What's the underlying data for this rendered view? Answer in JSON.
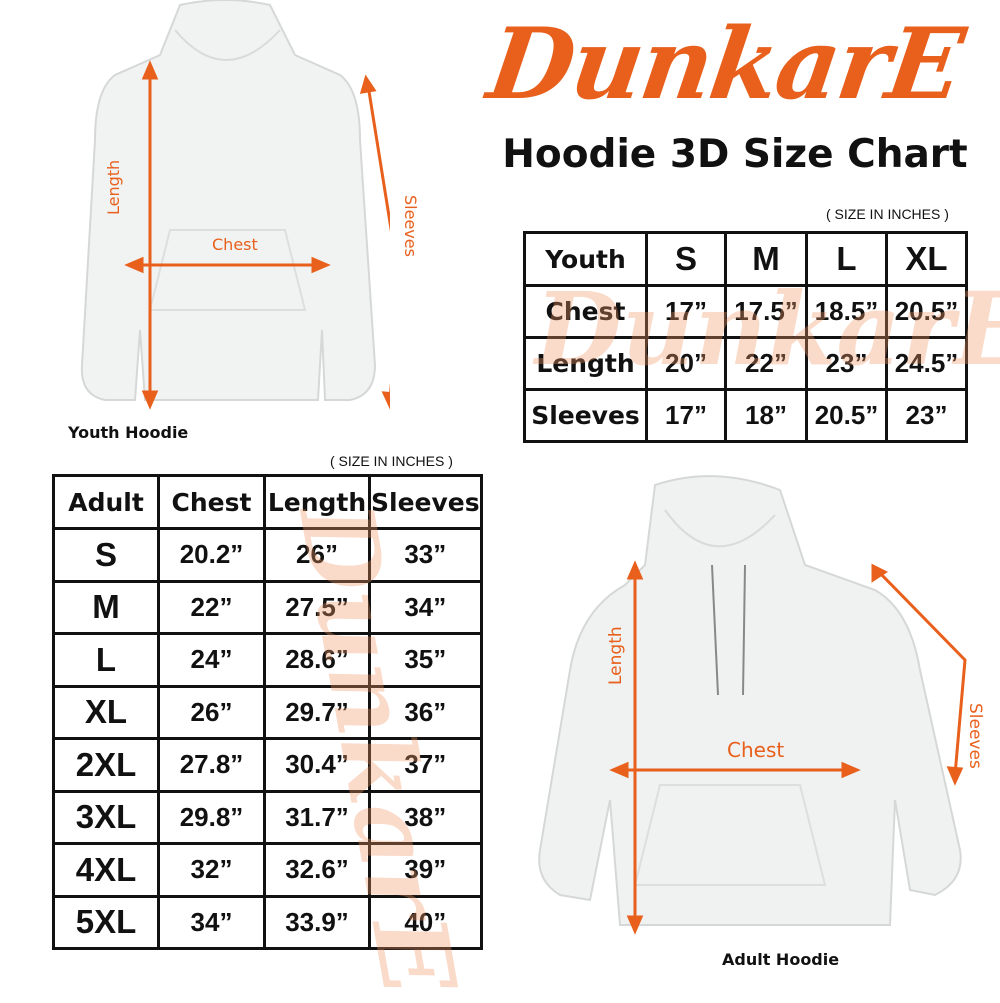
{
  "brand": {
    "logo_text": "DunkarE",
    "color": "#e8601c"
  },
  "title": "Hoodie 3D Size Chart",
  "youth": {
    "unit_note": "( SIZE IN INCHES )",
    "caption": "Youth Hoodie",
    "labels": {
      "length": "Length",
      "chest": "Chest",
      "sleeves": "Sleeves"
    },
    "header": [
      "Youth",
      "S",
      "M",
      "L",
      "XL"
    ],
    "rows": [
      [
        "Chest",
        "17”",
        "17.5”",
        "18.5”",
        "20.5”"
      ],
      [
        "Length",
        "20”",
        "22”",
        "23”",
        "24.5”"
      ],
      [
        "Sleeves",
        "17”",
        "18”",
        "20.5”",
        "23”"
      ]
    ]
  },
  "adult": {
    "unit_note": "( SIZE IN INCHES )",
    "caption": "Adult Hoodie",
    "labels": {
      "length": "Length",
      "chest": "Chest",
      "sleeves": "Sleeves"
    },
    "header": [
      "Adult",
      "Chest",
      "Length",
      "Sleeves"
    ],
    "rows": [
      [
        "S",
        "20.2”",
        "26”",
        "33”"
      ],
      [
        "M",
        "22”",
        "27.5”",
        "34”"
      ],
      [
        "L",
        "24”",
        "28.6”",
        "35”"
      ],
      [
        "XL",
        "26”",
        "29.7”",
        "36”"
      ],
      [
        "2XL",
        "27.8”",
        "30.4”",
        "37”"
      ],
      [
        "3XL",
        "29.8”",
        "31.7”",
        "38”"
      ],
      [
        "4XL",
        "32”",
        "32.6”",
        "39”"
      ],
      [
        "5XL",
        "34”",
        "33.9”",
        "40”"
      ]
    ]
  }
}
